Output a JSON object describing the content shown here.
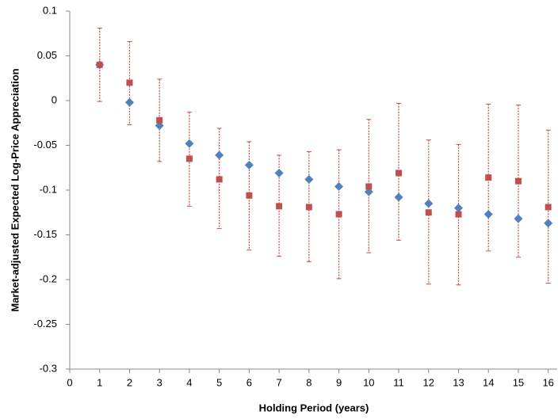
{
  "chart_data": {
    "type": "scatter",
    "x_label": "Holding Period (years)",
    "y_label": "Market-adjusted Expected Log-Price Appreciation",
    "xlim": [
      0,
      16.3
    ],
    "xticks": [
      0,
      1,
      2,
      3,
      4,
      5,
      6,
      7,
      8,
      9,
      10,
      11,
      12,
      13,
      14,
      15,
      16
    ],
    "ylim": [
      -0.3,
      0.1
    ],
    "yticks": [
      0.1,
      0.05,
      0,
      -0.05,
      -0.1,
      -0.15,
      -0.2,
      -0.25,
      -0.3
    ],
    "x": [
      1,
      2,
      3,
      4,
      5,
      6,
      7,
      8,
      9,
      10,
      11,
      12,
      13,
      14,
      15,
      16
    ],
    "series": [
      {
        "marker": "diamond",
        "color": "#4f81bd",
        "values": [
          0.04,
          -0.002,
          -0.028,
          -0.048,
          -0.061,
          -0.072,
          -0.081,
          -0.088,
          -0.096,
          -0.102,
          -0.108,
          -0.115,
          -0.12,
          -0.127,
          -0.132,
          -0.137
        ]
      },
      {
        "marker": "square",
        "color": "#c0504d",
        "values": [
          0.04,
          0.02,
          -0.022,
          -0.065,
          -0.088,
          -0.106,
          -0.118,
          -0.119,
          -0.127,
          -0.096,
          -0.081,
          -0.125,
          -0.127,
          -0.086,
          -0.09,
          -0.119
        ],
        "high": [
          0.081,
          0.066,
          0.024,
          -0.013,
          -0.031,
          -0.046,
          -0.061,
          -0.057,
          -0.055,
          -0.021,
          -0.003,
          -0.044,
          -0.049,
          -0.004,
          -0.005,
          -0.033
        ],
        "low": [
          -0.001,
          -0.027,
          -0.068,
          -0.118,
          -0.143,
          -0.167,
          -0.174,
          -0.18,
          -0.199,
          -0.17,
          -0.156,
          -0.205,
          -0.206,
          -0.168,
          -0.175,
          -0.204
        ]
      }
    ]
  }
}
